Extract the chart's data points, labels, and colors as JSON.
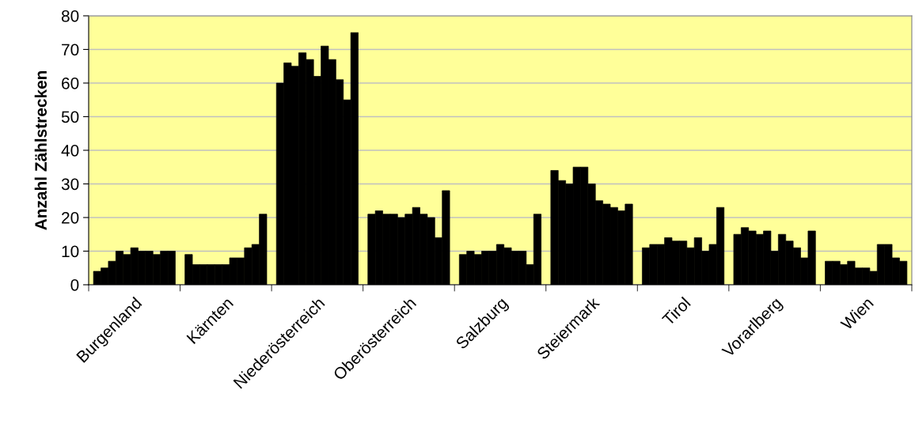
{
  "chart_data": {
    "type": "bar",
    "ylabel": "Anzahl Zählstrecken",
    "categories": [
      "Burgenland",
      "Kärnten",
      "Niederösterreich",
      "Oberösterreich",
      "Salzburg",
      "Steiermark",
      "Tirol",
      "Vorarlberg",
      "Wien"
    ],
    "series": [
      {
        "color": "#000000",
        "values": [
          4,
          9,
          60,
          21,
          9,
          34,
          11,
          15,
          7
        ]
      },
      {
        "color": "#000000",
        "values": [
          5,
          6,
          66,
          22,
          10,
          31,
          12,
          17,
          7
        ]
      },
      {
        "color": "#000000",
        "values": [
          7,
          6,
          65,
          21,
          9,
          30,
          12,
          16,
          6
        ]
      },
      {
        "color": "#000000",
        "values": [
          10,
          6,
          69,
          21,
          10,
          35,
          14,
          15,
          7
        ]
      },
      {
        "color": "#000000",
        "values": [
          9,
          6,
          67,
          20,
          10,
          35,
          13,
          16,
          5
        ]
      },
      {
        "color": "#000000",
        "values": [
          11,
          6,
          62,
          21,
          12,
          30,
          13,
          10,
          5
        ]
      },
      {
        "color": "#000000",
        "values": [
          10,
          8,
          71,
          23,
          11,
          25,
          11,
          15,
          4
        ]
      },
      {
        "color": "#000000",
        "values": [
          10,
          8,
          67,
          21,
          10,
          24,
          14,
          13,
          12
        ]
      },
      {
        "color": "#000000",
        "values": [
          9,
          11,
          61,
          20,
          10,
          23,
          10,
          11,
          12
        ]
      },
      {
        "color": "#000000",
        "values": [
          10,
          12,
          55,
          14,
          6,
          22,
          12,
          8,
          8
        ]
      },
      {
        "color": "#000000",
        "values": [
          10,
          21,
          75,
          28,
          21,
          24,
          23,
          16,
          7
        ]
      }
    ],
    "ylim": [
      0,
      80
    ],
    "yticks": [
      0,
      10,
      20,
      30,
      40,
      50,
      60,
      70,
      80
    ],
    "grid": "y"
  }
}
